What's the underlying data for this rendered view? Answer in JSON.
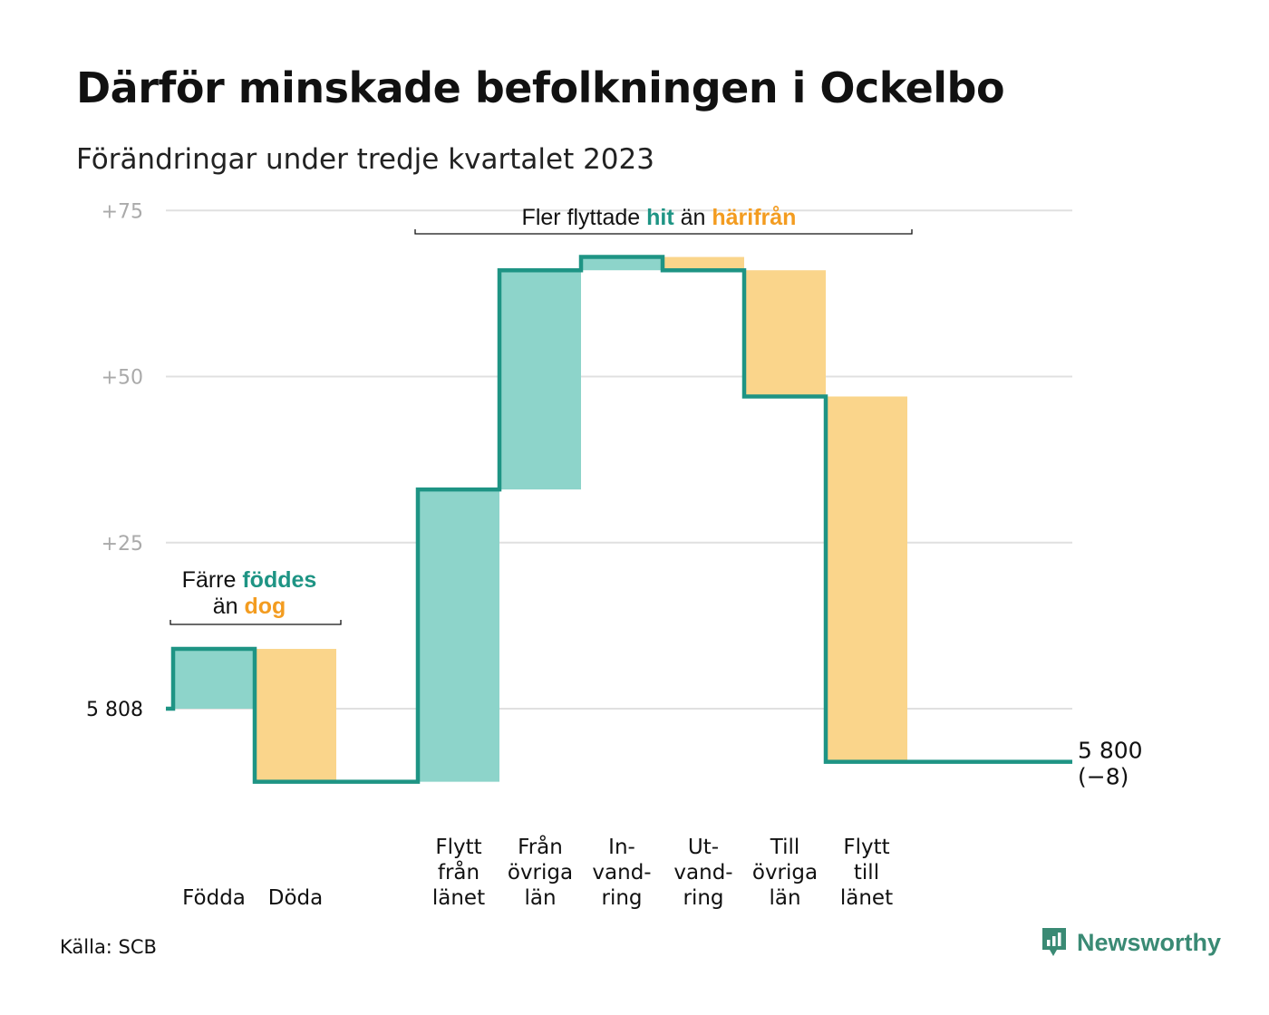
{
  "title": "Därför minskade befolkningen i Ockelbo",
  "subtitle": "Förändringar under tredje kvartalet 2023",
  "source": "Källa: SCB",
  "brand": {
    "name": "Newsworthy",
    "icon": "newsworthy-logo-icon"
  },
  "colors": {
    "increase_fill": "#8dd4ca",
    "decrease_fill": "#fad58b",
    "step_line": "#1e9484",
    "highlight_teal": "#1e9484",
    "highlight_orange": "#f39c20",
    "grid": "#e0e0e0",
    "tick_text": "#aaaaaa"
  },
  "annotations": {
    "births": {
      "line1_pre": "Färre ",
      "line1_hl": "föddes",
      "line2_pre": "än ",
      "line2_hl": "dog"
    },
    "migration": {
      "pre": "Fler flyttade ",
      "hl1": "hit",
      "mid": " än ",
      "hl2": "härifrån"
    }
  },
  "chart_data": {
    "type": "waterfall",
    "start": {
      "label": "5  808",
      "value": 5808
    },
    "end": {
      "label": "5 800",
      "change_label": "(−8)",
      "value": 5800
    },
    "y_ticks": [
      "+25",
      "+50",
      "+75"
    ],
    "y_tick_values": [
      25,
      50,
      75
    ],
    "ylim": [
      -15,
      77
    ],
    "grid": true,
    "groups": [
      {
        "name": "natural",
        "steps": [
          {
            "label": [
              "Födda"
            ],
            "change": 9,
            "kind": "increase"
          },
          {
            "label": [
              "Döda"
            ],
            "change": -20,
            "kind": "decrease"
          }
        ]
      },
      {
        "name": "migration",
        "steps": [
          {
            "label": [
              "Flytt",
              "från",
              "länet"
            ],
            "change": 44,
            "kind": "increase"
          },
          {
            "label": [
              "Från",
              "övriga",
              "län"
            ],
            "change": 33,
            "kind": "increase"
          },
          {
            "label": [
              "In-",
              "vand-",
              "ring"
            ],
            "change": 2,
            "kind": "increase"
          },
          {
            "label": [
              "Ut-",
              "vand-",
              "ring"
            ],
            "change": -2,
            "kind": "decrease"
          },
          {
            "label": [
              "Till",
              "övriga",
              "län"
            ],
            "change": -19,
            "kind": "decrease"
          },
          {
            "label": [
              "Flytt",
              "till",
              "länet"
            ],
            "change": -55,
            "kind": "decrease"
          }
        ]
      }
    ]
  }
}
